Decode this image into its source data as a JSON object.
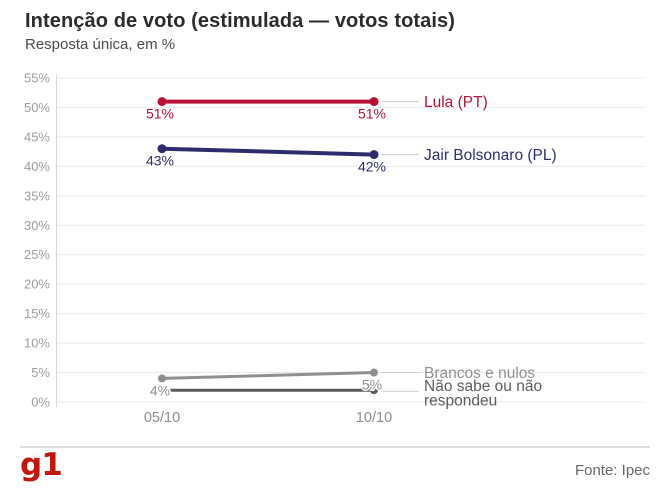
{
  "header": {
    "title": "Intenção de voto (estimulada — votos totais)",
    "subtitle": "Resposta única, em %"
  },
  "chart_data": {
    "type": "line",
    "x_categories": [
      "05/10",
      "10/10"
    ],
    "ylim": [
      0,
      55
    ],
    "ytick_step": 5,
    "yticks": [
      "0%",
      "5%",
      "10%",
      "15%",
      "20%",
      "25%",
      "30%",
      "35%",
      "40%",
      "45%",
      "50%",
      "55%"
    ],
    "grid": true,
    "legend_position": "right-of-line-ends",
    "series": [
      {
        "name": "Lula (PT)",
        "label_lines": [
          "Lula (PT)"
        ],
        "values": [
          51,
          51
        ],
        "point_labels": [
          "51%",
          "51%"
        ],
        "color": "#b71234",
        "stroke_width": 4
      },
      {
        "name": "Jair Bolsonaro (PL)",
        "label_lines": [
          "Jair Bolsonaro (PL)"
        ],
        "values": [
          43,
          42
        ],
        "point_labels": [
          "43%",
          "42%"
        ],
        "color": "#2e2c6e",
        "stroke_width": 4
      },
      {
        "name": "Brancos e nulos",
        "label_lines": [
          "Brancos e nulos"
        ],
        "values": [
          4,
          5
        ],
        "point_labels": [
          "4%",
          "5%"
        ],
        "color": "#8f8f8f",
        "stroke_width": 3
      },
      {
        "name": "Não sabe ou não respondeu",
        "label_lines": [
          "Não sabe ou não",
          "respondeu"
        ],
        "values": [
          2,
          2
        ],
        "point_labels": [
          "",
          ""
        ],
        "color": "#5c5c5c",
        "stroke_width": 3
      }
    ]
  },
  "footer": {
    "logo_text": "g1",
    "source": "Fonte: Ipec"
  },
  "colors": {
    "accent_red": "#b71234",
    "accent_navy": "#2e2c6e",
    "logo_red": "#c4170c",
    "grid": "#e8e8e8",
    "axis_text": "#9d9d9d",
    "x_axis_text": "#8c8c8c",
    "connector": "#cbcbcb",
    "muted_text": "#666666"
  }
}
